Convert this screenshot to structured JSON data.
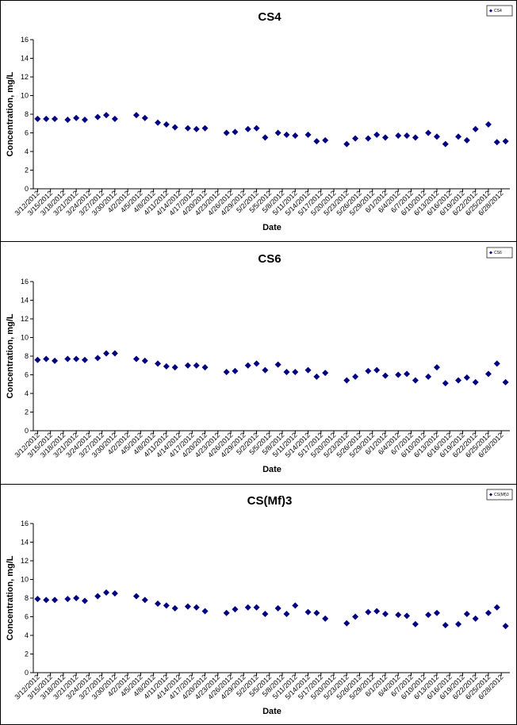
{
  "chart_data": [
    {
      "type": "scatter",
      "title": "CS4",
      "x_label": "Date",
      "y_label": "Concentration, mg/L",
      "xlim": [
        "2012-03-11",
        "2012-06-30"
      ],
      "ylim": [
        0,
        16
      ],
      "yticks": [
        0,
        2,
        4,
        6,
        8,
        10,
        12,
        14,
        16
      ],
      "xticks": [
        {
          "value": "2012-03-12",
          "label": "3/12/2012"
        },
        {
          "value": "2012-03-15",
          "label": "3/15/2012"
        },
        {
          "value": "2012-03-18",
          "label": "3/18/2012"
        },
        {
          "value": "2012-03-21",
          "label": "3/21/2012"
        },
        {
          "value": "2012-03-24",
          "label": "3/24/2012"
        },
        {
          "value": "2012-03-27",
          "label": "3/27/2012"
        },
        {
          "value": "2012-03-30",
          "label": "3/30/2012"
        },
        {
          "value": "2012-04-02",
          "label": "4/2/2012"
        },
        {
          "value": "2012-04-05",
          "label": "4/5/2012"
        },
        {
          "value": "2012-04-08",
          "label": "4/8/2012"
        },
        {
          "value": "2012-04-11",
          "label": "4/11/2012"
        },
        {
          "value": "2012-04-14",
          "label": "4/14/2012"
        },
        {
          "value": "2012-04-17",
          "label": "4/17/2012"
        },
        {
          "value": "2012-04-20",
          "label": "4/20/2012"
        },
        {
          "value": "2012-04-23",
          "label": "4/23/2012"
        },
        {
          "value": "2012-04-26",
          "label": "4/26/2012"
        },
        {
          "value": "2012-04-29",
          "label": "4/29/2012"
        },
        {
          "value": "2012-05-02",
          "label": "5/2/2012"
        },
        {
          "value": "2012-05-05",
          "label": "5/5/2012"
        },
        {
          "value": "2012-05-08",
          "label": "5/8/2012"
        },
        {
          "value": "2012-05-11",
          "label": "5/11/2012"
        },
        {
          "value": "2012-05-14",
          "label": "5/14/2012"
        },
        {
          "value": "2012-05-17",
          "label": "5/17/2012"
        },
        {
          "value": "2012-05-20",
          "label": "5/20/2012"
        },
        {
          "value": "2012-05-23",
          "label": "5/23/2012"
        },
        {
          "value": "2012-05-26",
          "label": "5/26/2012"
        },
        {
          "value": "2012-05-29",
          "label": "5/29/2012"
        },
        {
          "value": "2012-06-01",
          "label": "6/1/2012"
        },
        {
          "value": "2012-06-04",
          "label": "6/4/2012"
        },
        {
          "value": "2012-06-07",
          "label": "6/7/2012"
        },
        {
          "value": "2012-06-10",
          "label": "6/10/2012"
        },
        {
          "value": "2012-06-13",
          "label": "6/13/2012"
        },
        {
          "value": "2012-06-16",
          "label": "6/16/2012"
        },
        {
          "value": "2012-06-19",
          "label": "6/19/2012"
        },
        {
          "value": "2012-06-22",
          "label": "6/22/2012"
        },
        {
          "value": "2012-06-25",
          "label": "6/25/2012"
        },
        {
          "value": "2012-06-28",
          "label": "6/28/2012"
        }
      ],
      "x": [
        "2012-03-12",
        "2012-03-14",
        "2012-03-16",
        "2012-03-19",
        "2012-03-21",
        "2012-03-23",
        "2012-03-26",
        "2012-03-28",
        "2012-03-30",
        "2012-04-04",
        "2012-04-06",
        "2012-04-09",
        "2012-04-11",
        "2012-04-13",
        "2012-04-16",
        "2012-04-18",
        "2012-04-20",
        "2012-04-25",
        "2012-04-27",
        "2012-04-30",
        "2012-05-02",
        "2012-05-04",
        "2012-05-07",
        "2012-05-09",
        "2012-05-11",
        "2012-05-14",
        "2012-05-16",
        "2012-05-18",
        "2012-05-23",
        "2012-05-25",
        "2012-05-28",
        "2012-05-30",
        "2012-06-01",
        "2012-06-04",
        "2012-06-06",
        "2012-06-08",
        "2012-06-11",
        "2012-06-13",
        "2012-06-15",
        "2012-06-18",
        "2012-06-20",
        "2012-06-22",
        "2012-06-25",
        "2012-06-27",
        "2012-06-29"
      ],
      "series": [
        {
          "name": "CS4",
          "color": "#000080",
          "values": [
            7.5,
            7.5,
            7.5,
            7.4,
            7.6,
            7.4,
            7.7,
            7.9,
            7.5,
            7.9,
            7.6,
            7.1,
            6.9,
            6.6,
            6.5,
            6.4,
            6.5,
            6.0,
            6.1,
            6.4,
            6.5,
            5.5,
            6.0,
            5.8,
            5.7,
            5.8,
            5.1,
            5.2,
            4.8,
            5.4,
            5.4,
            5.8,
            5.5,
            5.7,
            5.7,
            5.5,
            6.0,
            5.6,
            4.8,
            5.6,
            5.2,
            6.4,
            6.9,
            5.0,
            5.1
          ]
        }
      ]
    },
    {
      "type": "scatter",
      "title": "CS6",
      "x_label": "Date",
      "y_label": "Concentration, mg/L",
      "xlim": [
        "2012-03-11",
        "2012-06-30"
      ],
      "ylim": [
        0,
        16
      ],
      "yticks": [
        0,
        2,
        4,
        6,
        8,
        10,
        12,
        14,
        16
      ],
      "xticks": [
        {
          "value": "2012-03-12",
          "label": "3/12/2012"
        },
        {
          "value": "2012-03-15",
          "label": "3/15/2012"
        },
        {
          "value": "2012-03-18",
          "label": "3/18/2012"
        },
        {
          "value": "2012-03-21",
          "label": "3/21/2012"
        },
        {
          "value": "2012-03-24",
          "label": "3/24/2012"
        },
        {
          "value": "2012-03-27",
          "label": "3/27/2012"
        },
        {
          "value": "2012-03-30",
          "label": "3/30/2012"
        },
        {
          "value": "2012-04-02",
          "label": "4/2/2012"
        },
        {
          "value": "2012-04-05",
          "label": "4/5/2012"
        },
        {
          "value": "2012-04-08",
          "label": "4/8/2012"
        },
        {
          "value": "2012-04-11",
          "label": "4/11/2012"
        },
        {
          "value": "2012-04-14",
          "label": "4/14/2012"
        },
        {
          "value": "2012-04-17",
          "label": "4/17/2012"
        },
        {
          "value": "2012-04-20",
          "label": "4/20/2012"
        },
        {
          "value": "2012-04-23",
          "label": "4/23/2012"
        },
        {
          "value": "2012-04-26",
          "label": "4/26/2012"
        },
        {
          "value": "2012-04-29",
          "label": "4/29/2012"
        },
        {
          "value": "2012-05-02",
          "label": "5/2/2012"
        },
        {
          "value": "2012-05-05",
          "label": "5/5/2012"
        },
        {
          "value": "2012-05-08",
          "label": "5/8/2012"
        },
        {
          "value": "2012-05-11",
          "label": "5/11/2012"
        },
        {
          "value": "2012-05-14",
          "label": "5/14/2012"
        },
        {
          "value": "2012-05-17",
          "label": "5/17/2012"
        },
        {
          "value": "2012-05-20",
          "label": "5/20/2012"
        },
        {
          "value": "2012-05-23",
          "label": "5/23/2012"
        },
        {
          "value": "2012-05-26",
          "label": "5/26/2012"
        },
        {
          "value": "2012-05-29",
          "label": "5/29/2012"
        },
        {
          "value": "2012-06-01",
          "label": "6/1/2012"
        },
        {
          "value": "2012-06-04",
          "label": "6/4/2012"
        },
        {
          "value": "2012-06-07",
          "label": "6/7/2012"
        },
        {
          "value": "2012-06-10",
          "label": "6/10/2012"
        },
        {
          "value": "2012-06-13",
          "label": "6/13/2012"
        },
        {
          "value": "2012-06-16",
          "label": "6/16/2012"
        },
        {
          "value": "2012-06-19",
          "label": "6/19/2012"
        },
        {
          "value": "2012-06-22",
          "label": "6/22/2012"
        },
        {
          "value": "2012-06-25",
          "label": "6/25/2012"
        },
        {
          "value": "2012-06-28",
          "label": "6/28/2012"
        }
      ],
      "x": [
        "2012-03-12",
        "2012-03-14",
        "2012-03-16",
        "2012-03-19",
        "2012-03-21",
        "2012-03-23",
        "2012-03-26",
        "2012-03-28",
        "2012-03-30",
        "2012-04-04",
        "2012-04-06",
        "2012-04-09",
        "2012-04-11",
        "2012-04-13",
        "2012-04-16",
        "2012-04-18",
        "2012-04-20",
        "2012-04-25",
        "2012-04-27",
        "2012-04-30",
        "2012-05-02",
        "2012-05-04",
        "2012-05-07",
        "2012-05-09",
        "2012-05-11",
        "2012-05-14",
        "2012-05-16",
        "2012-05-18",
        "2012-05-23",
        "2012-05-25",
        "2012-05-28",
        "2012-05-30",
        "2012-06-01",
        "2012-06-04",
        "2012-06-06",
        "2012-06-08",
        "2012-06-11",
        "2012-06-13",
        "2012-06-15",
        "2012-06-18",
        "2012-06-20",
        "2012-06-22",
        "2012-06-25",
        "2012-06-27",
        "2012-06-29"
      ],
      "series": [
        {
          "name": "CS6",
          "color": "#000080",
          "values": [
            7.6,
            7.7,
            7.5,
            7.7,
            7.7,
            7.6,
            7.8,
            8.3,
            8.3,
            7.7,
            7.5,
            7.2,
            6.9,
            6.8,
            7.0,
            7.0,
            6.8,
            6.3,
            6.4,
            7.0,
            7.2,
            6.5,
            7.1,
            6.3,
            6.3,
            6.5,
            5.8,
            6.2,
            5.4,
            5.8,
            6.4,
            6.5,
            5.9,
            6.0,
            6.1,
            5.4,
            5.8,
            6.8,
            5.1,
            5.4,
            5.7,
            5.2,
            6.1,
            7.2,
            5.2
          ]
        }
      ]
    },
    {
      "type": "scatter",
      "title": "CS(Mf)3",
      "x_label": "Date",
      "y_label": "Concentration, mg/L",
      "xlim": [
        "2012-03-11",
        "2012-06-30"
      ],
      "ylim": [
        0,
        16
      ],
      "yticks": [
        0,
        2,
        4,
        6,
        8,
        10,
        12,
        14,
        16
      ],
      "xticks": [
        {
          "value": "2012-03-12",
          "label": "3/12/2012"
        },
        {
          "value": "2012-03-15",
          "label": "3/15/2012"
        },
        {
          "value": "2012-03-18",
          "label": "3/18/2012"
        },
        {
          "value": "2012-03-21",
          "label": "3/21/2012"
        },
        {
          "value": "2012-03-24",
          "label": "3/24/2012"
        },
        {
          "value": "2012-03-27",
          "label": "3/27/2012"
        },
        {
          "value": "2012-03-30",
          "label": "3/30/2012"
        },
        {
          "value": "2012-04-02",
          "label": "4/2/2012"
        },
        {
          "value": "2012-04-05",
          "label": "4/5/2012"
        },
        {
          "value": "2012-04-08",
          "label": "4/8/2012"
        },
        {
          "value": "2012-04-11",
          "label": "4/11/2012"
        },
        {
          "value": "2012-04-14",
          "label": "4/14/2012"
        },
        {
          "value": "2012-04-17",
          "label": "4/17/2012"
        },
        {
          "value": "2012-04-20",
          "label": "4/20/2012"
        },
        {
          "value": "2012-04-23",
          "label": "4/23/2012"
        },
        {
          "value": "2012-04-26",
          "label": "4/26/2012"
        },
        {
          "value": "2012-04-29",
          "label": "4/29/2012"
        },
        {
          "value": "2012-05-02",
          "label": "5/2/2012"
        },
        {
          "value": "2012-05-05",
          "label": "5/5/2012"
        },
        {
          "value": "2012-05-08",
          "label": "5/8/2012"
        },
        {
          "value": "2012-05-11",
          "label": "5/11/2012"
        },
        {
          "value": "2012-05-14",
          "label": "5/14/2012"
        },
        {
          "value": "2012-05-17",
          "label": "5/17/2012"
        },
        {
          "value": "2012-05-20",
          "label": "5/20/2012"
        },
        {
          "value": "2012-05-23",
          "label": "5/23/2012"
        },
        {
          "value": "2012-05-26",
          "label": "5/26/2012"
        },
        {
          "value": "2012-05-29",
          "label": "5/29/2012"
        },
        {
          "value": "2012-06-01",
          "label": "6/1/2012"
        },
        {
          "value": "2012-06-04",
          "label": "6/4/2012"
        },
        {
          "value": "2012-06-07",
          "label": "6/7/2012"
        },
        {
          "value": "2012-06-10",
          "label": "6/10/2012"
        },
        {
          "value": "2012-06-13",
          "label": "6/13/2012"
        },
        {
          "value": "2012-06-16",
          "label": "6/16/2012"
        },
        {
          "value": "2012-06-19",
          "label": "6/19/2012"
        },
        {
          "value": "2012-06-22",
          "label": "6/22/2012"
        },
        {
          "value": "2012-06-25",
          "label": "6/25/2012"
        },
        {
          "value": "2012-06-28",
          "label": "6/28/2012"
        }
      ],
      "x": [
        "2012-03-12",
        "2012-03-14",
        "2012-03-16",
        "2012-03-19",
        "2012-03-21",
        "2012-03-23",
        "2012-03-26",
        "2012-03-28",
        "2012-03-30",
        "2012-04-04",
        "2012-04-06",
        "2012-04-09",
        "2012-04-11",
        "2012-04-13",
        "2012-04-16",
        "2012-04-18",
        "2012-04-20",
        "2012-04-25",
        "2012-04-27",
        "2012-04-30",
        "2012-05-02",
        "2012-05-04",
        "2012-05-07",
        "2012-05-09",
        "2012-05-11",
        "2012-05-14",
        "2012-05-16",
        "2012-05-18",
        "2012-05-23",
        "2012-05-25",
        "2012-05-28",
        "2012-05-30",
        "2012-06-01",
        "2012-06-04",
        "2012-06-06",
        "2012-06-08",
        "2012-06-11",
        "2012-06-13",
        "2012-06-15",
        "2012-06-18",
        "2012-06-20",
        "2012-06-22",
        "2012-06-25",
        "2012-06-27",
        "2012-06-29"
      ],
      "series": [
        {
          "name": "CS(Mf)3",
          "color": "#000080",
          "values": [
            7.9,
            7.8,
            7.8,
            7.9,
            8.0,
            7.7,
            8.2,
            8.6,
            8.5,
            8.2,
            7.8,
            7.4,
            7.2,
            6.9,
            7.1,
            7.0,
            6.6,
            6.4,
            6.8,
            7.0,
            7.0,
            6.3,
            6.9,
            6.3,
            7.2,
            6.5,
            6.4,
            5.8,
            5.3,
            6.0,
            6.5,
            6.6,
            6.3,
            6.2,
            6.1,
            5.2,
            6.2,
            6.4,
            5.1,
            5.2,
            6.3,
            5.8,
            6.4,
            7.0,
            5.0
          ]
        }
      ]
    }
  ]
}
